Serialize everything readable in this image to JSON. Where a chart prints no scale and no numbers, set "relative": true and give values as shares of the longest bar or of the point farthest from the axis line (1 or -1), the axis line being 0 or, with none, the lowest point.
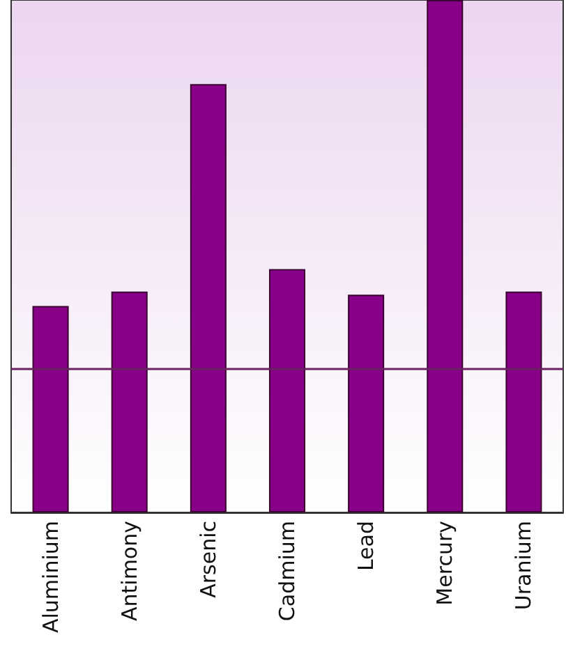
{
  "chart_data": {
    "type": "bar",
    "relative": true,
    "categories": [
      "Aluminium",
      "Antimony",
      "Arsenic",
      "Cadmium",
      "Lead",
      "Mercury",
      "Uranium"
    ],
    "values": [
      0.403,
      0.431,
      0.836,
      0.475,
      0.425,
      1,
      0.431
    ],
    "color": "#880088",
    "ref_lines": [
      {
        "axis": "y",
        "value": 0.283,
        "color": "#6b2060"
      }
    ]
  }
}
